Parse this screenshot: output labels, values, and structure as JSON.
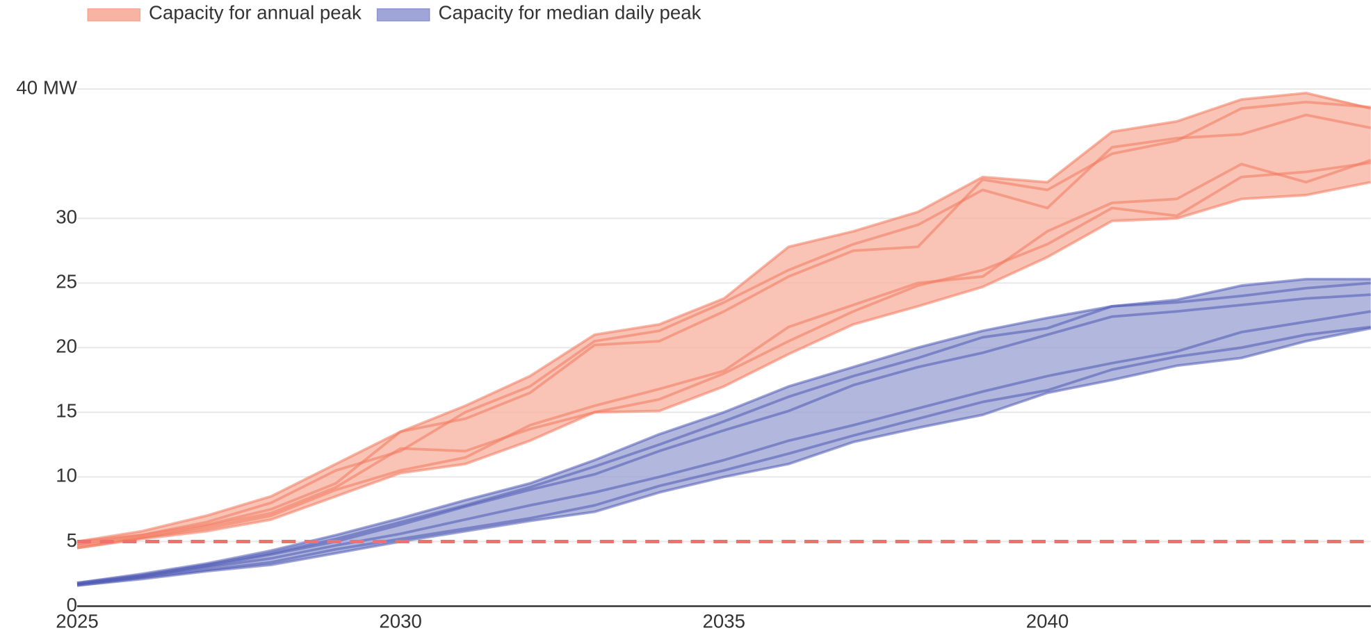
{
  "chart_data": {
    "type": "band-lines",
    "x": [
      2025,
      2026,
      2027,
      2028,
      2029,
      2030,
      2031,
      2032,
      2033,
      2034,
      2035,
      2036,
      2037,
      2038,
      2039,
      2040,
      2041,
      2042,
      2043,
      2044,
      2045
    ],
    "xlim": [
      2025,
      2045
    ],
    "xticks": [
      2025,
      2030,
      2035,
      2040
    ],
    "ylim": [
      0,
      40
    ],
    "yticks": [
      0,
      5,
      10,
      15,
      20,
      25,
      30,
      {
        "value": 40,
        "label": "40 MW"
      }
    ],
    "grid": true,
    "legend": "top-left",
    "reference_line": {
      "value": 5,
      "color": "#f07070",
      "dashed": true
    },
    "series": [
      {
        "name": "Capacity for annual peak",
        "color": "#f2785c",
        "fill": "#f8b4a3",
        "lines": [
          [
            5.0,
            5.8,
            7.0,
            8.5,
            11.0,
            13.5,
            15.5,
            17.8,
            21.0,
            21.8,
            23.8,
            27.8,
            29.0,
            30.5,
            33.2,
            32.8,
            36.7,
            37.5,
            39.2,
            39.7,
            38.5
          ],
          [
            4.8,
            5.5,
            6.5,
            8.0,
            10.5,
            12.0,
            15.0,
            17.0,
            20.5,
            21.3,
            23.5,
            26.0,
            28.0,
            29.5,
            32.2,
            30.8,
            35.5,
            36.2,
            36.5,
            38.0,
            37.0
          ],
          [
            5.0,
            5.5,
            6.3,
            7.5,
            9.5,
            13.5,
            14.5,
            16.5,
            20.2,
            20.5,
            22.8,
            25.5,
            27.5,
            27.8,
            33.0,
            32.2,
            35.0,
            36.0,
            38.5,
            39.0,
            38.6
          ],
          [
            4.5,
            5.3,
            6.0,
            7.0,
            9.0,
            10.5,
            11.5,
            14.0,
            15.5,
            16.8,
            18.2,
            21.6,
            23.3,
            25.0,
            25.5,
            29.0,
            31.2,
            31.5,
            34.2,
            32.8,
            34.5
          ],
          [
            4.5,
            5.2,
            5.8,
            6.7,
            8.5,
            10.3,
            11.0,
            12.8,
            15.0,
            15.1,
            17.0,
            19.5,
            21.8,
            23.2,
            24.7,
            27.0,
            29.8,
            30.0,
            31.5,
            31.8,
            32.8
          ],
          [
            4.7,
            5.3,
            6.2,
            7.2,
            9.2,
            12.2,
            12.0,
            13.7,
            15.0,
            16.0,
            18.0,
            20.5,
            22.8,
            24.8,
            26.0,
            28.0,
            30.8,
            30.2,
            33.2,
            33.6,
            34.3
          ]
        ]
      },
      {
        "name": "Capacity for median daily peak",
        "color": "#4f5ab5",
        "fill": "#9fa5d6",
        "lines": [
          [
            1.8,
            2.5,
            3.3,
            4.3,
            5.5,
            6.8,
            8.2,
            9.5,
            11.3,
            13.3,
            15.0,
            17.0,
            18.5,
            20.0,
            21.3,
            22.3,
            23.2,
            23.7,
            24.8,
            25.3,
            25.3
          ],
          [
            1.8,
            2.4,
            3.2,
            4.1,
            5.2,
            6.5,
            7.8,
            9.2,
            10.8,
            12.5,
            14.3,
            16.2,
            17.8,
            19.2,
            20.8,
            21.5,
            23.2,
            23.5,
            24.0,
            24.6,
            25.0
          ],
          [
            1.7,
            2.3,
            3.1,
            4.0,
            5.0,
            6.3,
            7.7,
            9.0,
            10.2,
            12.0,
            13.6,
            15.1,
            17.1,
            18.5,
            19.6,
            21.0,
            22.4,
            22.8,
            23.3,
            23.8,
            24.1
          ],
          [
            1.7,
            2.3,
            3.0,
            3.7,
            4.7,
            5.6,
            6.7,
            7.8,
            8.8,
            10.0,
            11.3,
            12.8,
            14.0,
            15.3,
            16.6,
            17.8,
            18.8,
            19.7,
            21.2,
            22.0,
            22.8
          ],
          [
            1.6,
            2.2,
            2.8,
            3.4,
            4.4,
            5.2,
            6.0,
            6.8,
            7.8,
            9.3,
            10.5,
            11.8,
            13.2,
            14.5,
            15.8,
            16.7,
            18.3,
            19.3,
            20.0,
            21.0,
            21.6
          ],
          [
            1.6,
            2.1,
            2.7,
            3.2,
            4.1,
            5.0,
            5.8,
            6.6,
            7.3,
            8.8,
            10.0,
            11.0,
            12.7,
            13.8,
            14.8,
            16.5,
            17.5,
            18.6,
            19.2,
            20.5,
            21.5
          ]
        ]
      }
    ]
  }
}
